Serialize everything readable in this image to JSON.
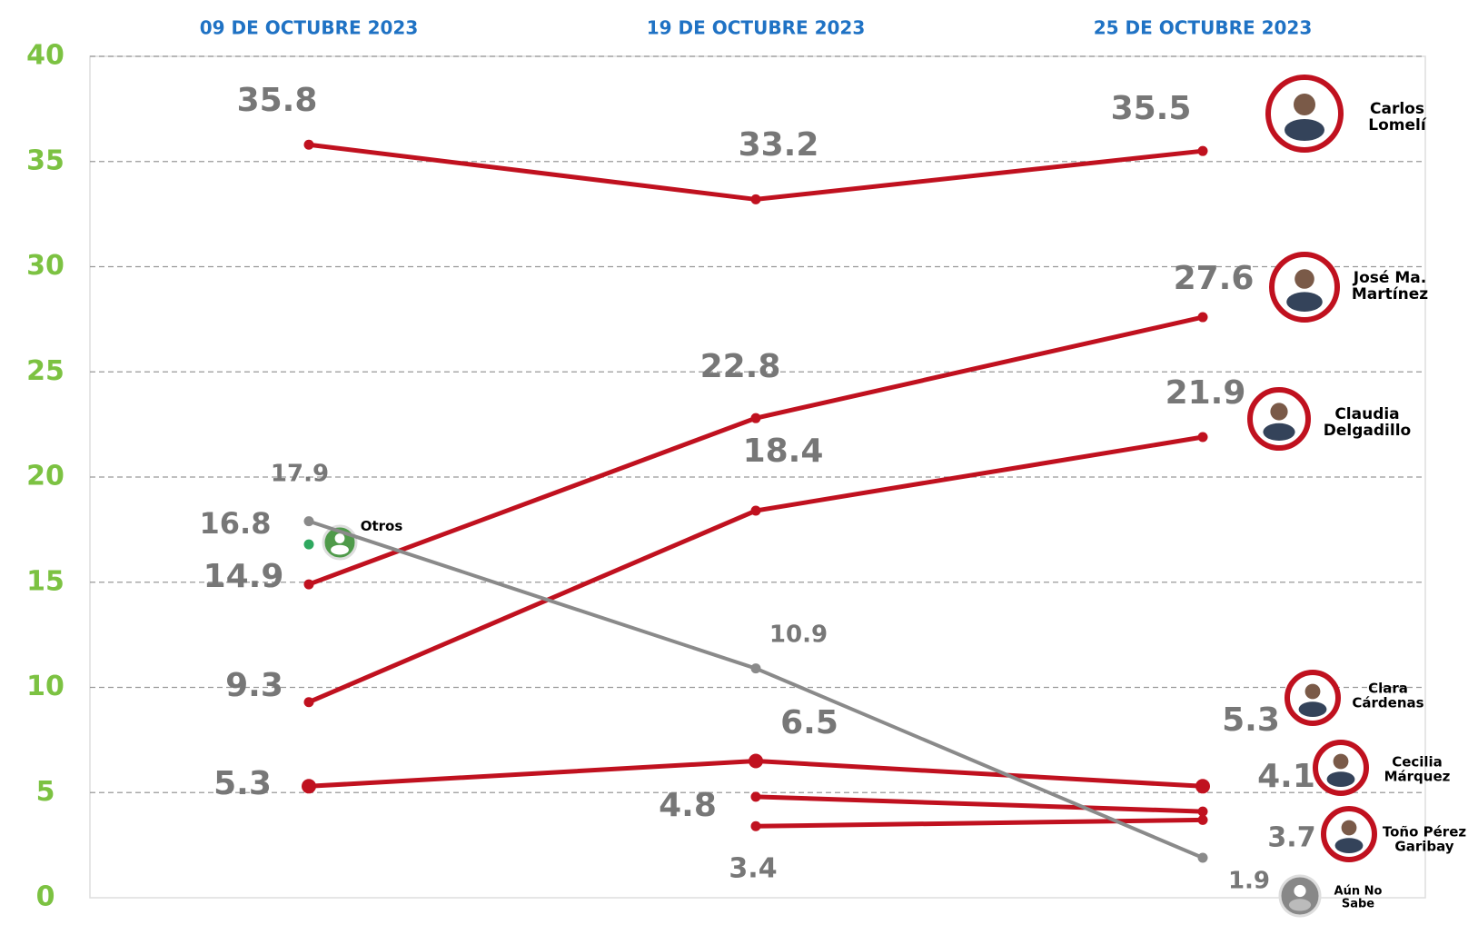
{
  "chart_data": {
    "type": "line",
    "categories": [
      "09 DE OCTUBRE 2023",
      "19 DE OCTUBRE 2023",
      "25 DE OCTUBRE 2023"
    ],
    "ylim": [
      0,
      40
    ],
    "yticks": [
      0,
      5,
      10,
      15,
      20,
      25,
      30,
      35,
      40
    ],
    "grid": true,
    "series": [
      {
        "name": "Carlos Lomelí",
        "color": "#c0111f",
        "values": [
          35.8,
          33.2,
          35.5
        ]
      },
      {
        "name": "José Ma. Martínez",
        "color": "#c0111f",
        "values": [
          14.9,
          22.8,
          27.6
        ]
      },
      {
        "name": "Claudia Delgadillo",
        "color": "#c0111f",
        "values": [
          9.3,
          18.4,
          21.9
        ]
      },
      {
        "name": "Clara Cárdenas",
        "color": "#c0111f",
        "values": [
          5.3,
          6.5,
          5.3
        ]
      },
      {
        "name": "Cecilia Márquez",
        "color": "#c0111f",
        "values": [
          null,
          4.8,
          4.1
        ]
      },
      {
        "name": "Toño Pérez Garibay",
        "color": "#c0111f",
        "values": [
          null,
          3.4,
          3.7
        ]
      },
      {
        "name": "Otros",
        "color": "#2fa85f",
        "values": [
          16.8,
          null,
          null
        ]
      },
      {
        "name": "Aún No Sabe",
        "color": "#8a8a8a",
        "values": [
          17.9,
          10.9,
          1.9
        ]
      }
    ]
  }
}
